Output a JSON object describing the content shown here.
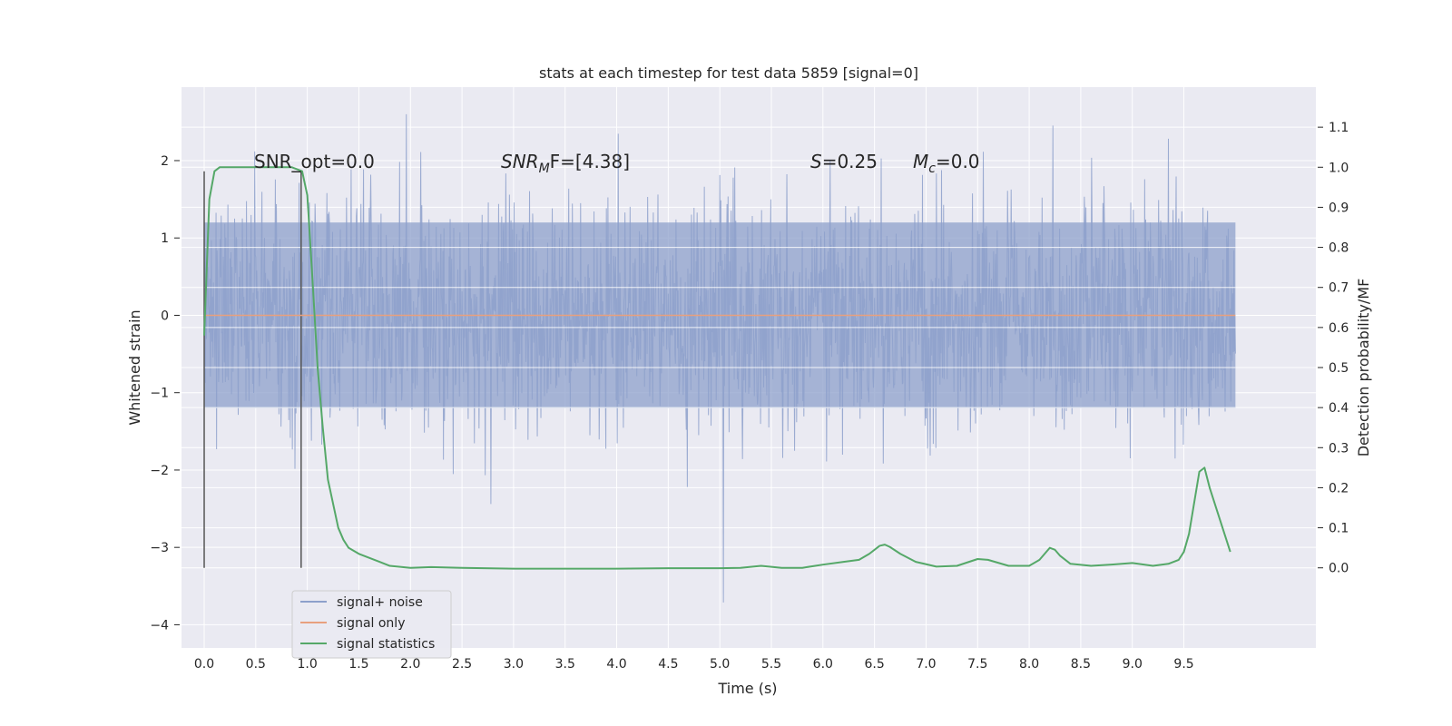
{
  "chart_data": {
    "type": "line",
    "title": "stats at each timestep for test data 5859 [signal=0]",
    "xlabel": "Time (s)",
    "ylabel": "Whitened strain",
    "ylabel_right": "Detection probability/MF",
    "xlim": [
      -0.22,
      10.78
    ],
    "ylim": [
      -4.3,
      2.95
    ],
    "ylim_right": [
      -0.2,
      1.2
    ],
    "x_ticks": [
      "0.0",
      "0.5",
      "1.0",
      "1.5",
      "2.0",
      "2.5",
      "3.0",
      "3.5",
      "4.0",
      "4.5",
      "5.0",
      "5.5",
      "6.0",
      "6.5",
      "7.0",
      "7.5",
      "8.0",
      "8.5",
      "9.0",
      "9.5"
    ],
    "y_ticks": [
      "2",
      "1",
      "0",
      "−1",
      "−2",
      "−3",
      "−4"
    ],
    "y_right_ticks": [
      "1.1",
      "1.0",
      "0.9",
      "0.8",
      "0.7",
      "0.6",
      "0.5",
      "0.4",
      "0.3",
      "0.2",
      "0.1",
      "0.0"
    ],
    "grid": true,
    "legend": "lower-left",
    "annotations": {
      "snr_opt": "SNR_opt=0.0",
      "snr_mf_sym": "SNR",
      "snr_mf_sub": "M",
      "snr_mf_rest": "F=[4.38]",
      "s_sym": "S",
      "s_rest": "=0.25",
      "mc_sym": "M",
      "mc_sub": "c",
      "mc_rest": "=0.0"
    },
    "markers": [
      0.0,
      0.94
    ],
    "series": [
      {
        "name": "signal+ noise",
        "color": "#8da0cb",
        "axis": "left",
        "x_range": [
          0.0,
          10.0
        ],
        "envelope": {
          "upper_typical": 1.2,
          "lower_typical": -1.2,
          "upper_peak": 2.6,
          "lower_peak": -4.0
        }
      },
      {
        "name": "signal only",
        "color": "#e8a07e",
        "axis": "left",
        "x": [
          0.0,
          10.0
        ],
        "y": [
          0.0,
          0.0
        ]
      },
      {
        "name": "signal statistics",
        "color": "#55a868",
        "axis": "right",
        "x": [
          0.0,
          0.05,
          0.1,
          0.15,
          0.2,
          0.3,
          0.5,
          0.7,
          0.85,
          0.95,
          1.0,
          1.05,
          1.1,
          1.15,
          1.2,
          1.3,
          1.35,
          1.4,
          1.5,
          1.6,
          1.7,
          1.8,
          2.0,
          2.2,
          2.5,
          3.0,
          3.5,
          4.0,
          4.5,
          5.0,
          5.2,
          5.4,
          5.6,
          5.8,
          6.0,
          6.2,
          6.35,
          6.45,
          6.55,
          6.6,
          6.65,
          6.75,
          6.9,
          7.1,
          7.3,
          7.5,
          7.6,
          7.8,
          8.0,
          8.1,
          8.2,
          8.25,
          8.3,
          8.4,
          8.6,
          8.8,
          9.0,
          9.2,
          9.35,
          9.45,
          9.5,
          9.55,
          9.65,
          9.7,
          9.75,
          9.9,
          9.95
        ],
        "y": [
          0.58,
          0.92,
          0.99,
          1.0,
          1.0,
          1.0,
          1.0,
          1.0,
          1.0,
          0.99,
          0.93,
          0.72,
          0.5,
          0.35,
          0.22,
          0.1,
          0.07,
          0.05,
          0.035,
          0.025,
          0.015,
          0.005,
          0.0,
          0.002,
          0.0,
          -0.002,
          -0.002,
          -0.002,
          -0.001,
          -0.001,
          0.0,
          0.005,
          0.0,
          0.0,
          0.008,
          0.015,
          0.02,
          0.035,
          0.055,
          0.058,
          0.052,
          0.035,
          0.015,
          0.003,
          0.005,
          0.022,
          0.02,
          0.005,
          0.005,
          0.02,
          0.05,
          0.045,
          0.03,
          0.01,
          0.005,
          0.008,
          0.012,
          0.005,
          0.01,
          0.02,
          0.04,
          0.085,
          0.24,
          0.25,
          0.2,
          0.08,
          0.04
        ]
      }
    ]
  }
}
